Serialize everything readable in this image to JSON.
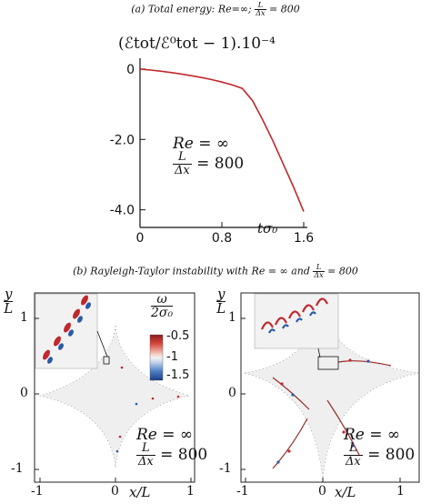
{
  "caption_a": {
    "prefix": "(a) Total energy: Re=∞; ",
    "frac_num": "L",
    "frac_den": "Δx",
    "suffix": " = 800"
  },
  "caption_b": {
    "prefix": "(b) Rayleigh-Taylor instability with Re = ∞ and ",
    "frac_num": "L",
    "frac_den": "Δx",
    "suffix": " = 800"
  },
  "chart_data": {
    "type": "line",
    "title": "(a) Total energy: Re=∞; L/Δx = 800",
    "ylabel": "(ℰtot/ℰ⁰tot − 1).10⁻⁴",
    "xlabel": "tσ₀",
    "xlim": [
      0,
      1.6
    ],
    "ylim": [
      -4.5,
      0.1
    ],
    "x_ticks": [
      "0",
      "0.8",
      "1.6"
    ],
    "y_ticks": [
      "0",
      "-2.0",
      "-4.0"
    ],
    "y_tick_values": [
      0,
      -2.0,
      -4.0
    ],
    "x_tick_values": [
      0,
      0.8,
      1.6
    ],
    "series": [
      {
        "color": "#c0282d",
        "x": [
          0.0,
          0.1,
          0.2,
          0.3,
          0.4,
          0.5,
          0.6,
          0.7,
          0.8,
          0.9,
          1.0,
          1.1,
          1.2,
          1.3,
          1.4,
          1.5,
          1.6
        ],
        "y": [
          0.0,
          -0.03,
          -0.06,
          -0.1,
          -0.14,
          -0.19,
          -0.24,
          -0.3,
          -0.37,
          -0.45,
          -0.55,
          -0.9,
          -1.45,
          -2.05,
          -2.7,
          -3.35,
          -4.05
        ]
      }
    ],
    "grid": false,
    "annotation": {
      "re_label": "Re = ∞",
      "ratio_num": "L",
      "ratio_den": "Δx",
      "ratio_value": "= 800"
    }
  },
  "panel_b": {
    "y_axis_label_num": "y",
    "y_axis_label_den": "L",
    "x_axis_label": "x/L",
    "y_ticks": [
      "1",
      "0",
      "-1"
    ],
    "x_ticks": [
      "-1",
      "0",
      "1"
    ],
    "colorbar": {
      "label_num": "ω",
      "label_den": "2σ₀",
      "ticks": [
        "-0.5",
        "-1",
        "-1.5"
      ]
    },
    "annotation": {
      "re_label": "Re = ∞",
      "ratio_num": "L",
      "ratio_den": "Δx",
      "ratio_value": "= 800"
    },
    "colors": {
      "background": "#f0f0f0",
      "positive": "#c0282d",
      "negative": "#2a5aa8"
    }
  }
}
